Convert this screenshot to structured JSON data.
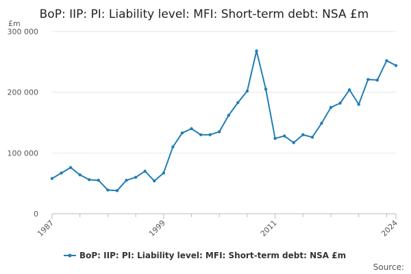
{
  "chart_data": {
    "type": "line",
    "title": "BoP: IIP: PI: Liability level: MFI: Short-term debt: NSA £m",
    "ylabel": "£m",
    "ylim": [
      0,
      300000
    ],
    "yticks": [
      0,
      100000,
      200000,
      300000
    ],
    "ytick_labels": [
      "0",
      "100 000",
      "200 000",
      "300 000"
    ],
    "xlim": [
      1987,
      2024
    ],
    "xticks": [
      1987,
      1999,
      2011,
      2024
    ],
    "xtick_labels": [
      "1987",
      "1999",
      "2011",
      "2024"
    ],
    "grid": true,
    "legend_position": "bottom",
    "series": [
      {
        "name": "BoP: IIP: PI: Liability level: MFI: Short-term debt: NSA £m",
        "color": "#1f7db5",
        "x": [
          1987,
          1988,
          1989,
          1990,
          1991,
          1992,
          1993,
          1994,
          1995,
          1996,
          1997,
          1998,
          1999,
          2000,
          2001,
          2002,
          2003,
          2004,
          2005,
          2006,
          2007,
          2008,
          2009,
          2010,
          2011,
          2012,
          2013,
          2014,
          2015,
          2016,
          2017,
          2018,
          2019,
          2020,
          2021,
          2022,
          2023,
          2024
        ],
        "values": [
          58000,
          67000,
          76000,
          64000,
          56000,
          55000,
          39000,
          38000,
          55000,
          60000,
          70000,
          54000,
          67000,
          110000,
          133000,
          140000,
          130000,
          130000,
          135000,
          162000,
          183000,
          202000,
          268000,
          205000,
          124000,
          128000,
          117000,
          130000,
          126000,
          149000,
          175000,
          182000,
          204000,
          180000,
          221000,
          220000,
          252000,
          244000
        ]
      }
    ]
  },
  "source_label": "Source:"
}
